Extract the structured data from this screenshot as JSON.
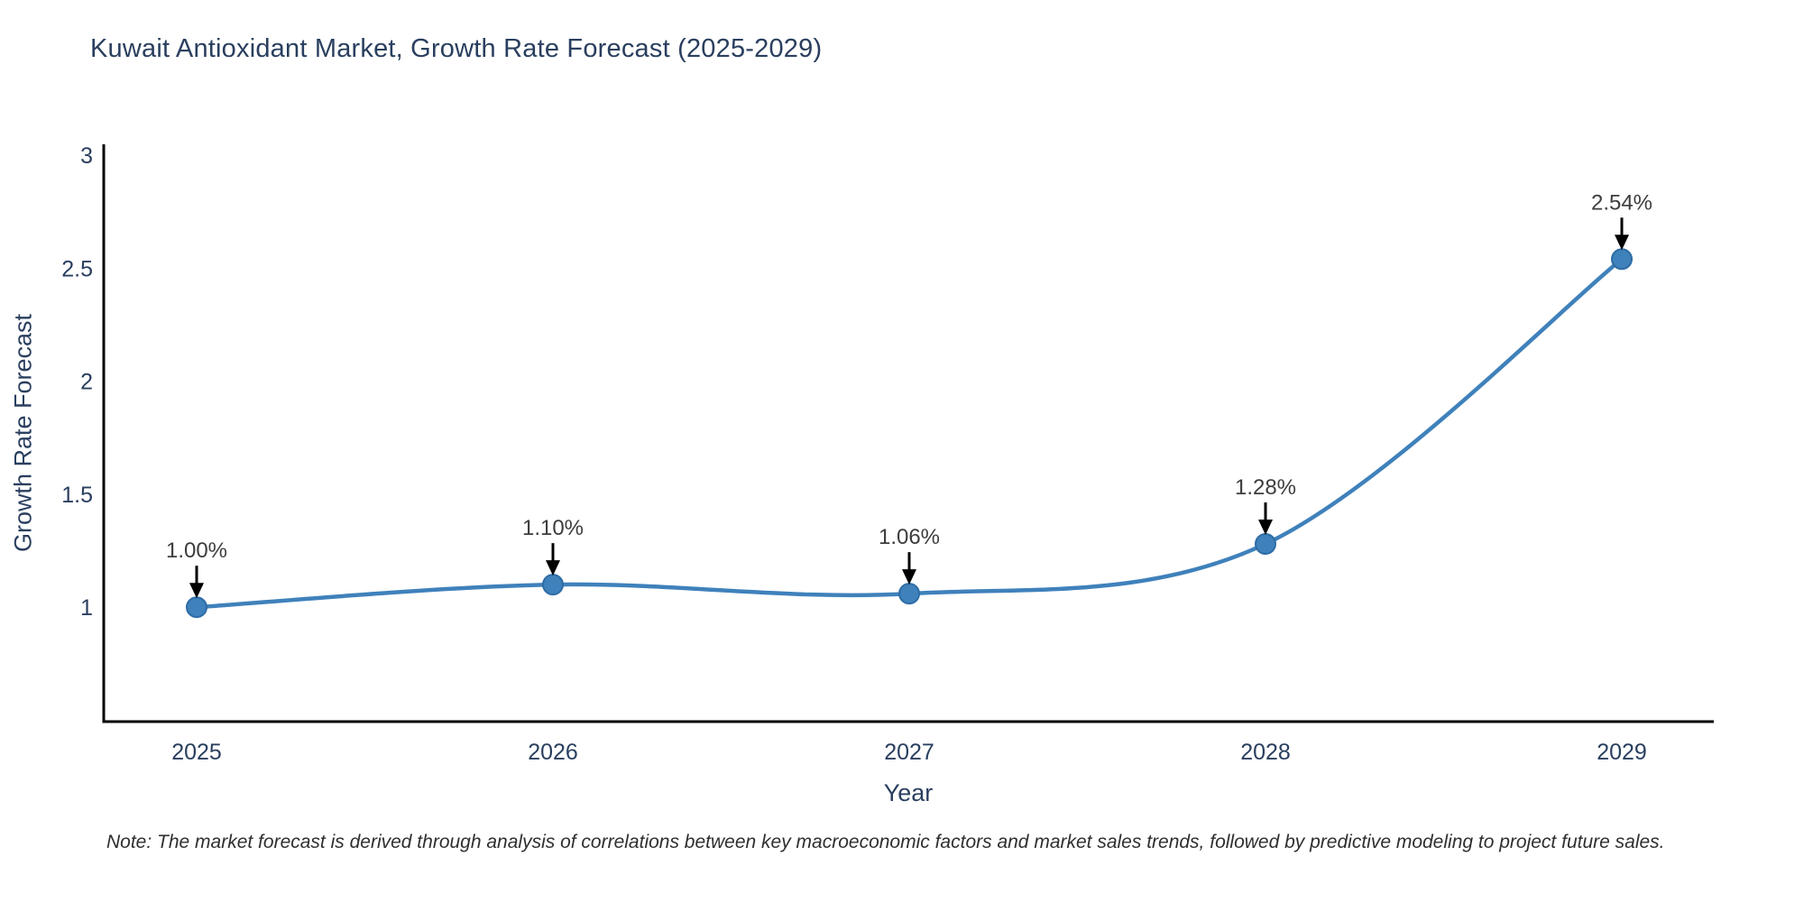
{
  "page": {
    "background": "#ffffff"
  },
  "chart_data": {
    "type": "line",
    "title": "Kuwait Antioxidant Market, Growth Rate Forecast (2025-2029)",
    "xlabel": "Year",
    "ylabel": "Growth Rate Forecast",
    "categories": [
      "2025",
      "2026",
      "2027",
      "2028",
      "2029"
    ],
    "series": [
      {
        "name": "Growth Rate Forecast",
        "values": [
          1.0,
          1.1,
          1.06,
          1.28,
          2.54
        ]
      }
    ],
    "point_labels": [
      "1.00%",
      "1.10%",
      "1.06%",
      "1.28%",
      "2.54%"
    ],
    "yticks": [
      1,
      1.5,
      2,
      2.5,
      3
    ],
    "ylim": [
      0.49,
      3.05
    ],
    "line_shape": "spline",
    "grid": false,
    "legend_position": "none",
    "colors": {
      "line": "#3f81bb",
      "marker_fill": "#3f81bb",
      "marker_border": "#2e6ca5",
      "axis_line": "#000000",
      "title_text": "#2a3f5f",
      "tick_text": "#2a3f5f",
      "annotation_text": "#3d3d3d",
      "arrow": "#000000"
    }
  },
  "note": {
    "text": "Note: The market forecast is derived through analysis of correlations between key macroeconomic factors and market sales trends, followed by predictive modeling to project future sales."
  }
}
